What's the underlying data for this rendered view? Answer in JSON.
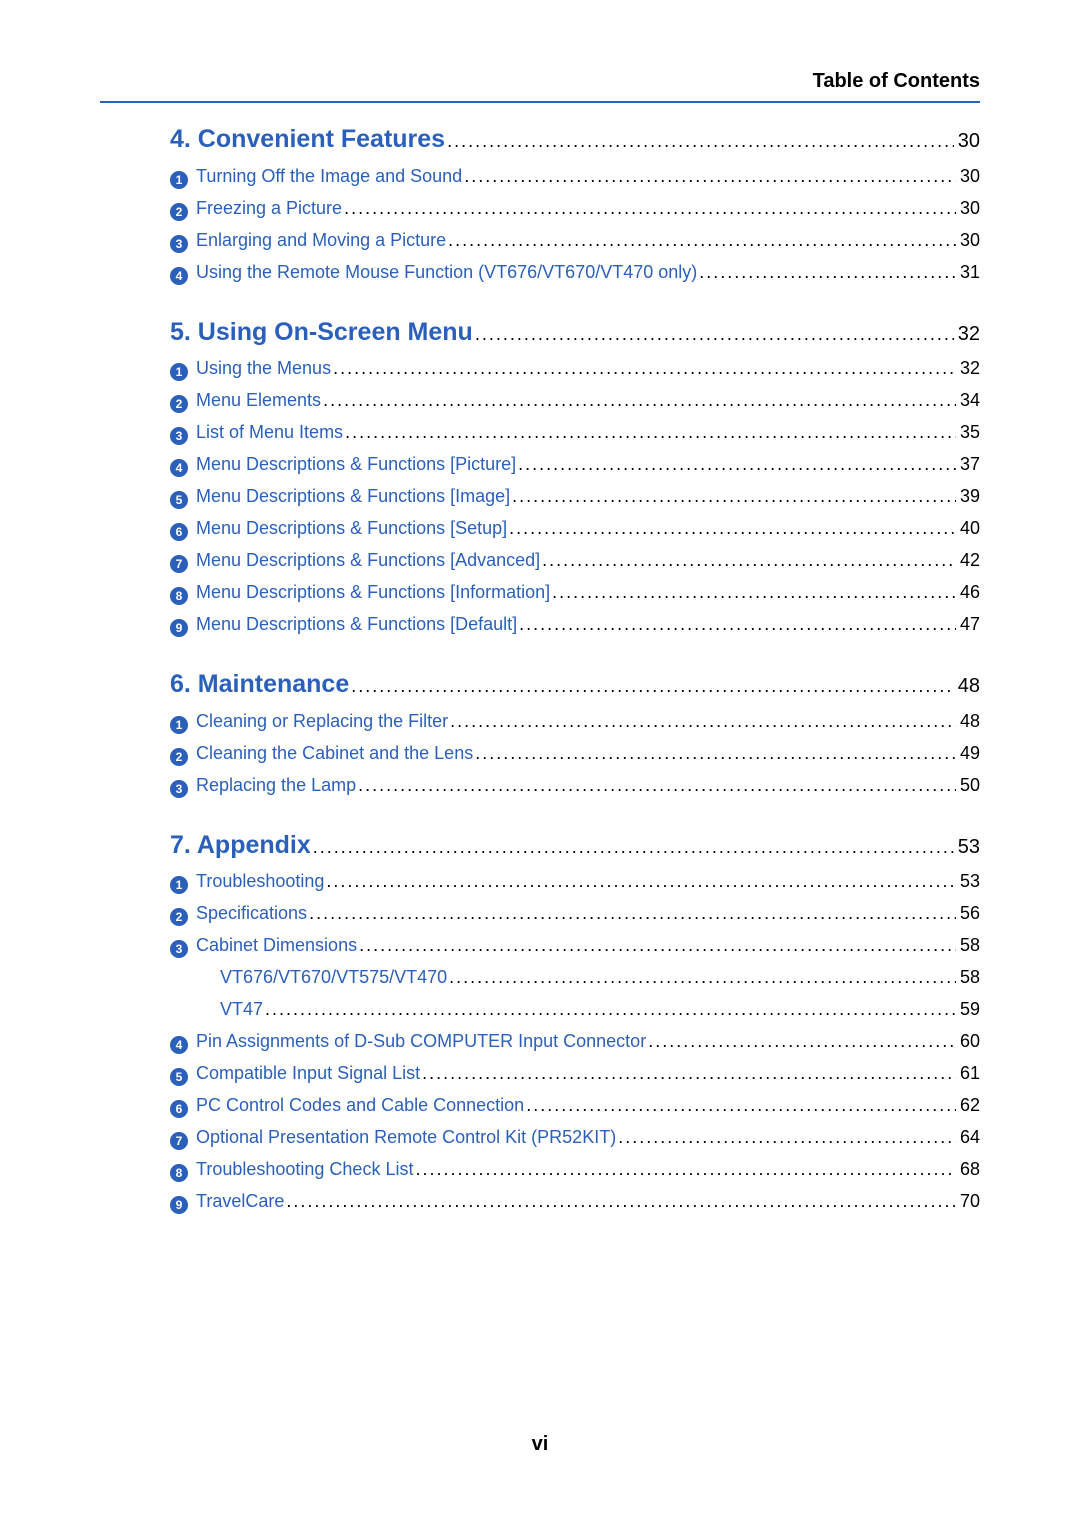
{
  "header": {
    "title": "Table of Contents"
  },
  "colors": {
    "accent": "#2a5fba",
    "text": "#000000",
    "bg": "#ffffff"
  },
  "typography": {
    "section_fontsize": 25,
    "item_fontsize": 18,
    "header_fontsize": 20,
    "pagenum_fontsize": 20
  },
  "pageNumber": "vi",
  "sections": [
    {
      "title": "4. Convenient Features",
      "page": "30",
      "items": [
        {
          "n": "1",
          "text": "Turning Off the Image and Sound",
          "page": "30"
        },
        {
          "n": "2",
          "text": "Freezing a Picture",
          "page": "30"
        },
        {
          "n": "3",
          "text": "Enlarging and Moving a Picture",
          "page": "30"
        },
        {
          "n": "4",
          "text": "Using the Remote Mouse Function (VT676/VT670/VT470 only)",
          "page": "31"
        }
      ]
    },
    {
      "title": "5. Using On-Screen Menu",
      "page": "32",
      "items": [
        {
          "n": "1",
          "text": "Using the Menus",
          "page": "32"
        },
        {
          "n": "2",
          "text": "Menu Elements",
          "page": "34"
        },
        {
          "n": "3",
          "text": "List of Menu Items",
          "page": "35"
        },
        {
          "n": "4",
          "text": "Menu Descriptions & Functions [Picture]",
          "page": "37"
        },
        {
          "n": "5",
          "text": "Menu Descriptions & Functions [Image]",
          "page": "39"
        },
        {
          "n": "6",
          "text": "Menu Descriptions & Functions [Setup]",
          "page": "40"
        },
        {
          "n": "7",
          "text": "Menu Descriptions & Functions [Advanced]",
          "page": "42"
        },
        {
          "n": "8",
          "text": "Menu Descriptions & Functions [Information]",
          "page": "46"
        },
        {
          "n": "9",
          "text": "Menu Descriptions & Functions [Default]",
          "page": "47"
        }
      ]
    },
    {
      "title": "6. Maintenance",
      "page": "48",
      "items": [
        {
          "n": "1",
          "text": "Cleaning or Replacing the Filter",
          "page": "48"
        },
        {
          "n": "2",
          "text": "Cleaning the Cabinet and the Lens",
          "page": "49"
        },
        {
          "n": "3",
          "text": "Replacing the Lamp",
          "page": "50"
        }
      ]
    },
    {
      "title": "7. Appendix",
      "page": "53",
      "items": [
        {
          "n": "1",
          "text": "Troubleshooting",
          "page": "53"
        },
        {
          "n": "2",
          "text": "Specifications",
          "page": "56"
        },
        {
          "n": "3",
          "text": "Cabinet Dimensions",
          "page": "58",
          "subs": [
            {
              "text": "VT676/VT670/VT575/VT470",
              "page": "58"
            },
            {
              "text": "VT47",
              "page": "59"
            }
          ]
        },
        {
          "n": "4",
          "text": "Pin Assignments of D-Sub COMPUTER Input Connector",
          "page": "60"
        },
        {
          "n": "5",
          "text": "Compatible Input Signal List",
          "page": "61"
        },
        {
          "n": "6",
          "text": "PC Control Codes and Cable Connection",
          "page": "62"
        },
        {
          "n": "7",
          "text": "Optional Presentation Remote Control Kit (PR52KIT)",
          "page": "64"
        },
        {
          "n": "8",
          "text": "Troubleshooting Check List",
          "page": "68"
        },
        {
          "n": "9",
          "text": "TravelCare",
          "page": "70"
        }
      ]
    }
  ]
}
